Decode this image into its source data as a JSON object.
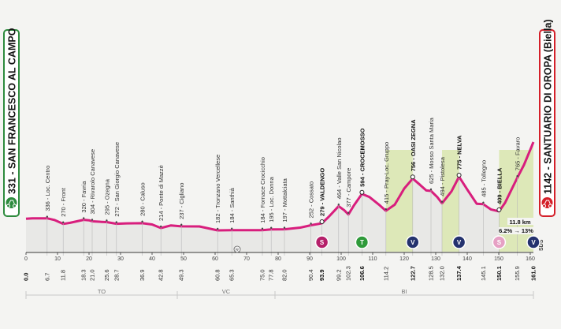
{
  "chart_data": {
    "type": "area",
    "start": {
      "altitude": "331",
      "name": "SAN FRANCESCO AL CAMPO"
    },
    "finish": {
      "altitude": "1142",
      "name": "SANTUARIO DI OROPA (Biella)"
    },
    "x_axis_km": [
      0,
      10,
      20,
      30,
      40,
      50,
      60,
      70,
      80,
      90,
      100,
      110,
      120,
      130,
      140,
      150,
      160
    ],
    "unit_label": "SDS",
    "profile": [
      [
        0,
        331
      ],
      [
        2,
        336
      ],
      [
        4,
        335
      ],
      [
        6.7,
        336
      ],
      [
        9,
        318
      ],
      [
        11.8,
        270
      ],
      [
        14,
        285
      ],
      [
        18.3,
        320
      ],
      [
        20,
        315
      ],
      [
        21,
        304
      ],
      [
        24,
        298
      ],
      [
        25.6,
        295
      ],
      [
        28.7,
        272
      ],
      [
        32,
        278
      ],
      [
        36.9,
        280
      ],
      [
        40,
        262
      ],
      [
        42.8,
        214
      ],
      [
        46,
        250
      ],
      [
        49.3,
        237
      ],
      [
        55,
        236
      ],
      [
        60.8,
        182
      ],
      [
        65.3,
        184
      ],
      [
        70,
        184
      ],
      [
        75,
        184
      ],
      [
        77.8,
        195
      ],
      [
        82,
        197
      ],
      [
        87,
        220
      ],
      [
        90.4,
        252
      ],
      [
        93.9,
        279
      ],
      [
        96,
        350
      ],
      [
        99.2,
        464
      ],
      [
        101,
        420
      ],
      [
        102.3,
        377
      ],
      [
        104,
        470
      ],
      [
        106.6,
        594
      ],
      [
        109,
        560
      ],
      [
        112,
        480
      ],
      [
        114.2,
        415
      ],
      [
        117,
        480
      ],
      [
        120,
        650
      ],
      [
        122.7,
        756
      ],
      [
        125,
        690
      ],
      [
        127,
        630
      ],
      [
        128.5,
        625
      ],
      [
        130.5,
        560
      ],
      [
        132,
        494
      ],
      [
        135,
        620
      ],
      [
        137.4,
        775
      ],
      [
        140,
        640
      ],
      [
        143,
        490
      ],
      [
        145.1,
        485
      ],
      [
        147.5,
        430
      ],
      [
        150.1,
        409
      ],
      [
        152,
        500
      ],
      [
        155.9,
        765
      ],
      [
        158,
        900
      ],
      [
        160,
        1060
      ],
      [
        161,
        1142
      ]
    ],
    "ylim": [
      0,
      1200
    ],
    "places": [
      {
        "km": 6.7,
        "name": "336 - Loc. Centro",
        "bold": false
      },
      {
        "km": 11.8,
        "name": "270 - Front",
        "bold": false
      },
      {
        "km": 18.3,
        "name": "320 - Favria",
        "bold": false
      },
      {
        "km": 21.0,
        "name": "304 - Rivarolo Canavese",
        "bold": false
      },
      {
        "km": 25.6,
        "name": "295 - Ozegna",
        "bold": false
      },
      {
        "km": 28.7,
        "name": "272 - San Giorgio Canavese",
        "bold": false
      },
      {
        "km": 36.9,
        "name": "280 - Caluso",
        "bold": false
      },
      {
        "km": 42.8,
        "name": "214 - Ponte di Mazzè",
        "bold": false
      },
      {
        "km": 49.3,
        "name": "237 - Cigliano",
        "bold": false
      },
      {
        "km": 60.8,
        "name": "182 - Tronzano Vercellese",
        "bold": false
      },
      {
        "km": 65.3,
        "name": "184 - Santhià",
        "bold": false
      },
      {
        "km": 75.0,
        "name": "184 - Fornace Crocicchio",
        "bold": false
      },
      {
        "km": 77.8,
        "name": "195 - Loc. Donna",
        "bold": false
      },
      {
        "km": 82.0,
        "name": "197 - Mottalciata",
        "bold": false
      },
      {
        "km": 90.4,
        "name": "252 - Cossato",
        "bold": false
      },
      {
        "km": 93.9,
        "name": "279 - VALDENGO",
        "bold": true
      },
      {
        "km": 99.2,
        "name": "464 - Valle San Nicolao",
        "bold": false
      },
      {
        "km": 102.3,
        "name": "377 - Campore",
        "bold": false
      },
      {
        "km": 106.6,
        "name": "594 - CROCEMOSSO",
        "bold": true
      },
      {
        "km": 114.2,
        "name": "415 - Pray-Loc. Gruppo",
        "bold": false
      },
      {
        "km": 122.7,
        "name": "756 - OASI ZEGNA",
        "bold": true
      },
      {
        "km": 128.5,
        "name": "625 - Mosso Santa Maria",
        "bold": false
      },
      {
        "km": 132.0,
        "name": "494 - Pistolesa",
        "bold": false
      },
      {
        "km": 137.4,
        "name": "775 - NELVA",
        "bold": true
      },
      {
        "km": 145.1,
        "name": "485 - Tollegno",
        "bold": false
      },
      {
        "km": 150.1,
        "name": "409 - BIELLA",
        "bold": true
      },
      {
        "km": 155.9,
        "name": "765 - Favaro",
        "bold": false
      }
    ],
    "km_labels": [
      {
        "km": 0,
        "label": "0.0",
        "bold": true
      },
      {
        "km": 6.7,
        "label": "6.7",
        "bold": false
      },
      {
        "km": 11.8,
        "label": "11.8",
        "bold": false
      },
      {
        "km": 18.3,
        "label": "18.3",
        "bold": false
      },
      {
        "km": 21.0,
        "label": "21.0",
        "bold": false
      },
      {
        "km": 25.6,
        "label": "25.6",
        "bold": false
      },
      {
        "km": 28.7,
        "label": "28.7",
        "bold": false
      },
      {
        "km": 36.9,
        "label": "36.9",
        "bold": false
      },
      {
        "km": 42.8,
        "label": "42.8",
        "bold": false
      },
      {
        "km": 49.3,
        "label": "49.3",
        "bold": false
      },
      {
        "km": 60.8,
        "label": "60.8",
        "bold": false
      },
      {
        "km": 65.3,
        "label": "65.3",
        "bold": false
      },
      {
        "km": 75.0,
        "label": "75.0",
        "bold": false
      },
      {
        "km": 77.8,
        "label": "77.8",
        "bold": false
      },
      {
        "km": 82.0,
        "label": "82.0",
        "bold": false
      },
      {
        "km": 90.4,
        "label": "90.4",
        "bold": false
      },
      {
        "km": 93.9,
        "label": "93.9",
        "bold": true
      },
      {
        "km": 99.2,
        "label": "99.2",
        "bold": false
      },
      {
        "km": 102.3,
        "label": "102.3",
        "bold": false
      },
      {
        "km": 106.6,
        "label": "106.6",
        "bold": true
      },
      {
        "km": 114.2,
        "label": "114.2",
        "bold": false
      },
      {
        "km": 122.7,
        "label": "122.7",
        "bold": true
      },
      {
        "km": 128.5,
        "label": "128.5",
        "bold": false
      },
      {
        "km": 132.0,
        "label": "132.0",
        "bold": false
      },
      {
        "km": 137.4,
        "label": "137.4",
        "bold": true
      },
      {
        "km": 145.1,
        "label": "145.1",
        "bold": false
      },
      {
        "km": 150.1,
        "label": "150.1",
        "bold": true
      },
      {
        "km": 155.9,
        "label": "155.9",
        "bold": false
      },
      {
        "km": 161.0,
        "label": "161.0",
        "bold": true
      }
    ],
    "climb_zones": [
      [
        114.2,
        122.7
      ],
      [
        132.0,
        137.4
      ],
      [
        150.1,
        161.0
      ]
    ],
    "markers": [
      {
        "km": 93.9,
        "symbol": "S",
        "color": "#b5206a"
      },
      {
        "km": 106.6,
        "symbol": "T",
        "color": "#2f9a3a"
      },
      {
        "km": 122.7,
        "symbol": "V",
        "color": "#24326e"
      },
      {
        "km": 137.4,
        "symbol": "V",
        "color": "#24326e"
      },
      {
        "km": 150.1,
        "symbol": "S",
        "color": "#e6a0c4"
      },
      {
        "km": 161.0,
        "symbol": "V",
        "color": "#24326e"
      }
    ],
    "mid_marker": {
      "km": 67,
      "symbol": "R"
    },
    "final_climb": {
      "length": "11.8 km",
      "gradient": "6.2% → 13%"
    },
    "provinces": [
      {
        "from": 0,
        "to": 48,
        "label": "TO"
      },
      {
        "from": 48,
        "to": 79,
        "label": "VC"
      },
      {
        "from": 79,
        "to": 161,
        "label": "BI"
      }
    ],
    "colors": {
      "profile": "#d81e7d",
      "climb_fill": "#dde8b8",
      "start_badge": "#2e8b3e",
      "finish_badge": "#d4202a"
    }
  }
}
